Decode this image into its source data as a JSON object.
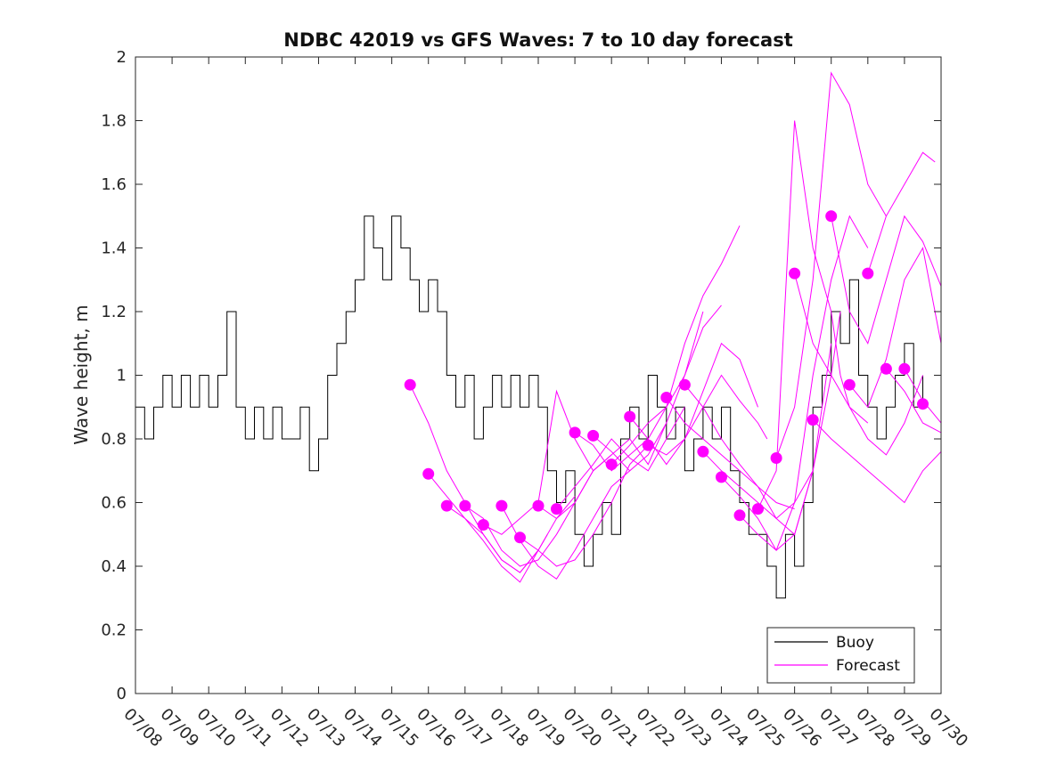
{
  "chart_data": {
    "type": "line",
    "title": "NDBC 42019 vs GFS Waves: 7 to 10 day forecast",
    "xlabel": "",
    "ylabel": "Wave height, m",
    "ylim": [
      0,
      2
    ],
    "yticks": [
      "0",
      "0.2",
      "0.4",
      "0.6",
      "0.8",
      "1",
      "1.2",
      "1.4",
      "1.6",
      "1.8",
      "2"
    ],
    "xlim": [
      "07/08",
      "07/30"
    ],
    "xticks": [
      "07/08",
      "07/09",
      "07/10",
      "07/11",
      "07/12",
      "07/13",
      "07/14",
      "07/15",
      "07/16",
      "07/17",
      "07/18",
      "07/19",
      "07/20",
      "07/21",
      "07/22",
      "07/23",
      "07/24",
      "07/25",
      "07/26",
      "07/27",
      "07/28",
      "07/29",
      "07/30"
    ],
    "grid": false,
    "legend": {
      "location": "bottom-right",
      "entries": [
        "Buoy",
        "Forecast"
      ]
    },
    "colors": {
      "buoy": "#000000",
      "forecast": "#ff00ff"
    },
    "buoy": {
      "name": "Buoy",
      "x": [
        "07/08 00:00",
        "07/08 06:00",
        "07/08 12:00",
        "07/08 18:00",
        "07/09 00:00",
        "07/09 06:00",
        "07/09 12:00",
        "07/09 18:00",
        "07/10 00:00",
        "07/10 06:00",
        "07/10 12:00",
        "07/10 18:00",
        "07/11 00:00",
        "07/11 06:00",
        "07/11 12:00",
        "07/11 18:00",
        "07/12 00:00",
        "07/12 06:00",
        "07/12 12:00",
        "07/12 18:00",
        "07/13 00:00",
        "07/13 06:00",
        "07/13 12:00",
        "07/13 18:00",
        "07/14 00:00",
        "07/14 06:00",
        "07/14 12:00",
        "07/14 18:00",
        "07/15 00:00",
        "07/15 06:00",
        "07/15 12:00",
        "07/15 18:00",
        "07/16 00:00",
        "07/16 06:00",
        "07/16 12:00",
        "07/16 18:00",
        "07/17 00:00",
        "07/17 06:00",
        "07/17 12:00",
        "07/17 18:00",
        "07/18 00:00",
        "07/18 06:00",
        "07/18 12:00",
        "07/18 18:00",
        "07/19 00:00",
        "07/19 06:00",
        "07/19 12:00",
        "07/19 18:00",
        "07/20 00:00",
        "07/20 06:00",
        "07/20 12:00",
        "07/20 18:00",
        "07/21 00:00",
        "07/21 06:00",
        "07/21 12:00",
        "07/21 18:00",
        "07/22 00:00",
        "07/22 06:00",
        "07/22 12:00",
        "07/22 18:00",
        "07/23 00:00",
        "07/23 06:00",
        "07/23 12:00",
        "07/23 18:00",
        "07/24 00:00",
        "07/24 06:00",
        "07/24 12:00",
        "07/24 18:00",
        "07/25 00:00",
        "07/25 06:00",
        "07/25 12:00",
        "07/25 18:00",
        "07/26 00:00",
        "07/26 06:00",
        "07/26 12:00",
        "07/26 18:00",
        "07/27 00:00",
        "07/27 06:00",
        "07/27 12:00",
        "07/27 18:00",
        "07/28 00:00",
        "07/28 06:00",
        "07/28 12:00",
        "07/28 18:00",
        "07/29 00:00",
        "07/29 06:00",
        "07/29 12:00"
      ],
      "y": [
        0.9,
        0.8,
        0.9,
        1.0,
        0.9,
        1.0,
        0.9,
        1.0,
        0.9,
        1.0,
        1.2,
        0.9,
        0.8,
        0.9,
        0.8,
        0.9,
        0.8,
        0.8,
        0.9,
        0.7,
        0.8,
        1.0,
        1.1,
        1.2,
        1.3,
        1.5,
        1.4,
        1.3,
        1.5,
        1.4,
        1.3,
        1.2,
        1.3,
        1.2,
        1.0,
        0.9,
        1.0,
        0.8,
        0.9,
        1.0,
        0.9,
        1.0,
        0.9,
        1.0,
        0.9,
        0.7,
        0.6,
        0.7,
        0.5,
        0.4,
        0.5,
        0.6,
        0.5,
        0.8,
        0.9,
        0.8,
        1.0,
        0.9,
        0.8,
        0.9,
        0.7,
        0.8,
        0.9,
        0.8,
        0.9,
        0.7,
        0.6,
        0.5,
        0.5,
        0.4,
        0.3,
        0.5,
        0.4,
        0.6,
        0.9,
        1.0,
        1.2,
        1.1,
        1.3,
        1.0,
        0.9,
        0.8,
        0.9,
        1.0,
        1.1,
        0.9,
        1.0
      ]
    },
    "forecast_series": [
      {
        "x": [
          "07/15 12:00",
          "07/16 00:00",
          "07/16 12:00",
          "07/17 00:00",
          "07/17 12:00",
          "07/18 00:00",
          "07/18 12:00",
          "07/19 00:00"
        ],
        "y": [
          0.97,
          0.85,
          0.7,
          0.6,
          0.5,
          0.42,
          0.38,
          0.45
        ]
      },
      {
        "x": [
          "07/16 00:00",
          "07/16 12:00",
          "07/17 00:00",
          "07/17 12:00",
          "07/18 00:00",
          "07/18 12:00",
          "07/19 00:00",
          "07/19 06:00"
        ],
        "y": [
          0.69,
          0.62,
          0.55,
          0.48,
          0.4,
          0.35,
          0.45,
          0.5
        ]
      },
      {
        "x": [
          "07/16 12:00",
          "07/17 00:00",
          "07/17 12:00",
          "07/18 00:00",
          "07/18 12:00",
          "07/19 00:00",
          "07/19 12:00",
          "07/20 00:00"
        ],
        "y": [
          0.59,
          0.55,
          0.5,
          0.42,
          0.38,
          0.45,
          0.55,
          0.62
        ]
      },
      {
        "x": [
          "07/17 00:00",
          "07/17 12:00",
          "07/18 00:00",
          "07/18 12:00",
          "07/19 00:00",
          "07/19 12:00",
          "07/20 00:00",
          "07/20 12:00"
        ],
        "y": [
          0.59,
          0.55,
          0.45,
          0.4,
          0.42,
          0.5,
          0.6,
          0.7
        ]
      },
      {
        "x": [
          "07/17 12:00",
          "07/18 00:00",
          "07/18 12:00",
          "07/19 00:00",
          "07/19 12:00",
          "07/20 00:00",
          "07/20 12:00",
          "07/21 00:00"
        ],
        "y": [
          0.53,
          0.5,
          0.55,
          0.6,
          0.95,
          0.8,
          0.7,
          0.75
        ]
      },
      {
        "x": [
          "07/18 00:00",
          "07/18 12:00",
          "07/19 00:00",
          "07/19 12:00",
          "07/20 00:00",
          "07/20 12:00",
          "07/21 00:00",
          "07/21 12:00"
        ],
        "y": [
          0.59,
          0.48,
          0.4,
          0.36,
          0.45,
          0.55,
          0.65,
          0.7
        ]
      },
      {
        "x": [
          "07/18 12:00",
          "07/19 00:00",
          "07/19 12:00",
          "07/20 00:00",
          "07/20 12:00",
          "07/21 00:00",
          "07/21 12:00",
          "07/22 00:00"
        ],
        "y": [
          0.49,
          0.45,
          0.4,
          0.42,
          0.5,
          0.6,
          0.72,
          0.78
        ]
      },
      {
        "x": [
          "07/19 00:00",
          "07/19 12:00",
          "07/20 00:00",
          "07/20 12:00",
          "07/21 00:00",
          "07/21 12:00",
          "07/22 00:00",
          "07/22 12:00"
        ],
        "y": [
          0.59,
          0.55,
          0.6,
          0.7,
          0.75,
          0.8,
          0.72,
          0.85
        ]
      },
      {
        "x": [
          "07/19 12:00",
          "07/20 00:00",
          "07/20 12:00",
          "07/21 00:00",
          "07/21 12:00",
          "07/22 00:00",
          "07/22 12:00",
          "07/23 00:00"
        ],
        "y": [
          0.58,
          0.65,
          0.72,
          0.8,
          0.74,
          0.7,
          0.8,
          0.9
        ]
      },
      {
        "x": [
          "07/20 00:00",
          "07/20 12:00",
          "07/21 00:00",
          "07/21 12:00",
          "07/22 00:00",
          "07/22 12:00",
          "07/23 00:00",
          "07/23 12:00"
        ],
        "y": [
          0.82,
          0.78,
          0.7,
          0.75,
          0.8,
          0.9,
          1.0,
          1.2
        ]
      },
      {
        "x": [
          "07/20 12:00",
          "07/21 00:00",
          "07/21 12:00",
          "07/22 00:00",
          "07/22 12:00",
          "07/23 00:00",
          "07/23 12:00",
          "07/24 00:00"
        ],
        "y": [
          0.81,
          0.76,
          0.7,
          0.75,
          0.85,
          1.0,
          1.15,
          1.22
        ]
      },
      {
        "x": [
          "07/21 00:00",
          "07/21 12:00",
          "07/22 00:00",
          "07/22 12:00",
          "07/23 00:00",
          "07/23 12:00",
          "07/24 00:00",
          "07/24 12:00"
        ],
        "y": [
          0.72,
          0.78,
          0.85,
          0.9,
          1.1,
          1.25,
          1.35,
          1.47
        ]
      },
      {
        "x": [
          "07/21 12:00",
          "07/22 00:00",
          "07/22 12:00",
          "07/23 00:00",
          "07/23 12:00",
          "07/24 00:00",
          "07/24 12:00",
          "07/25 00:00"
        ],
        "y": [
          0.87,
          0.8,
          0.72,
          0.8,
          0.95,
          1.1,
          1.05,
          0.9
        ]
      },
      {
        "x": [
          "07/22 00:00",
          "07/22 12:00",
          "07/23 00:00",
          "07/23 12:00",
          "07/24 00:00",
          "07/24 12:00",
          "07/25 00:00",
          "07/25 06:00"
        ],
        "y": [
          0.78,
          0.75,
          0.8,
          0.9,
          1.0,
          0.92,
          0.85,
          0.8
        ]
      },
      {
        "x": [
          "07/22 12:00",
          "07/23 00:00",
          "07/23 12:00",
          "07/24 00:00",
          "07/24 12:00",
          "07/25 00:00",
          "07/25 12:00",
          "07/26 00:00"
        ],
        "y": [
          0.93,
          0.85,
          0.8,
          0.75,
          0.7,
          0.65,
          0.6,
          0.58
        ]
      },
      {
        "x": [
          "07/23 00:00",
          "07/23 12:00",
          "07/24 00:00",
          "07/24 12:00",
          "07/25 00:00",
          "07/25 12:00",
          "07/26 00:00",
          "07/26 12:00"
        ],
        "y": [
          0.97,
          0.9,
          0.8,
          0.72,
          0.65,
          0.55,
          0.6,
          0.7
        ]
      },
      {
        "x": [
          "07/23 12:00",
          "07/24 00:00",
          "07/24 12:00",
          "07/25 00:00",
          "07/25 12:00",
          "07/26 00:00",
          "07/26 12:00",
          "07/27 00:00"
        ],
        "y": [
          0.76,
          0.7,
          0.65,
          0.6,
          0.55,
          0.5,
          0.7,
          1.1
        ]
      },
      {
        "x": [
          "07/24 00:00",
          "07/24 12:00",
          "07/25 00:00",
          "07/25 12:00",
          "07/26 00:00",
          "07/26 12:00",
          "07/27 00:00",
          "07/27 06:00"
        ],
        "y": [
          0.68,
          0.62,
          0.55,
          0.45,
          0.5,
          0.7,
          1.0,
          1.2
        ]
      },
      {
        "x": [
          "07/24 12:00",
          "07/25 00:00",
          "07/25 12:00",
          "07/26 00:00",
          "07/26 12:00",
          "07/27 00:00",
          "07/27 12:00",
          "07/28 00:00"
        ],
        "y": [
          0.56,
          0.5,
          0.45,
          0.6,
          1.0,
          1.3,
          1.5,
          1.4
        ]
      },
      {
        "x": [
          "07/25 00:00",
          "07/25 12:00",
          "07/26 00:00",
          "07/26 12:00",
          "07/27 00:00",
          "07/27 06:00",
          "07/27 12:00",
          "07/28 00:00"
        ],
        "y": [
          0.58,
          0.7,
          1.8,
          1.4,
          1.2,
          1.0,
          0.9,
          0.85
        ]
      },
      {
        "x": [
          "07/25 12:00",
          "07/26 00:00",
          "07/26 12:00",
          "07/27 00:00",
          "07/27 06:00",
          "07/27 12:00",
          "07/28 00:00",
          "07/28 12:00"
        ],
        "y": [
          0.74,
          0.9,
          1.3,
          1.95,
          1.9,
          1.85,
          1.6,
          1.5
        ]
      },
      {
        "x": [
          "07/26 00:00",
          "07/26 12:00",
          "07/27 00:00",
          "07/27 12:00",
          "07/28 00:00",
          "07/28 12:00",
          "07/29 00:00",
          "07/29 12:00"
        ],
        "y": [
          1.32,
          1.1,
          1.0,
          0.9,
          0.8,
          0.75,
          0.85,
          1.0
        ]
      },
      {
        "x": [
          "07/26 12:00",
          "07/27 00:00",
          "07/27 12:00",
          "07/28 00:00",
          "07/28 12:00",
          "07/29 00:00",
          "07/29 12:00",
          "07/30 00:00"
        ],
        "y": [
          0.86,
          0.8,
          0.75,
          0.7,
          0.65,
          0.6,
          0.7,
          0.76
        ]
      },
      {
        "x": [
          "07/27 00:00",
          "07/27 12:00",
          "07/28 00:00",
          "07/28 12:00",
          "07/29 00:00",
          "07/29 12:00",
          "07/30 00:00"
        ],
        "y": [
          1.5,
          1.2,
          1.1,
          1.3,
          1.5,
          1.42,
          1.28
        ]
      },
      {
        "x": [
          "07/27 12:00",
          "07/28 00:00",
          "07/28 12:00",
          "07/29 00:00",
          "07/29 12:00",
          "07/30 00:00"
        ],
        "y": [
          0.97,
          0.9,
          1.05,
          1.3,
          1.4,
          1.1
        ]
      },
      {
        "x": [
          "07/28 00:00",
          "07/28 12:00",
          "07/29 00:00",
          "07/29 12:00",
          "07/29 20:00"
        ],
        "y": [
          1.32,
          1.5,
          1.6,
          1.7,
          1.67
        ]
      },
      {
        "x": [
          "07/28 12:00",
          "07/29 00:00",
          "07/29 12:00",
          "07/30 00:00"
        ],
        "y": [
          1.02,
          0.95,
          0.85,
          0.82
        ]
      },
      {
        "x": [
          "07/29 00:00",
          "07/29 12:00",
          "07/30 00:00"
        ],
        "y": [
          1.02,
          0.92,
          0.85
        ]
      }
    ],
    "forecast_points": {
      "x": [
        "07/15 12:00",
        "07/16 00:00",
        "07/16 12:00",
        "07/17 00:00",
        "07/17 12:00",
        "07/18 00:00",
        "07/18 12:00",
        "07/19 00:00",
        "07/19 12:00",
        "07/20 00:00",
        "07/20 12:00",
        "07/21 00:00",
        "07/21 12:00",
        "07/22 00:00",
        "07/22 12:00",
        "07/23 00:00",
        "07/23 12:00",
        "07/24 00:00",
        "07/24 12:00",
        "07/25 00:00",
        "07/25 12:00",
        "07/26 00:00",
        "07/26 12:00",
        "07/27 00:00",
        "07/27 12:00",
        "07/28 00:00",
        "07/28 12:00",
        "07/29 00:00",
        "07/29 12:00"
      ],
      "y": [
        0.97,
        0.69,
        0.59,
        0.59,
        0.53,
        0.59,
        0.49,
        0.59,
        0.58,
        0.82,
        0.81,
        0.72,
        0.87,
        0.78,
        0.93,
        0.97,
        0.76,
        0.68,
        0.56,
        0.58,
        0.74,
        1.32,
        0.86,
        1.5,
        0.97,
        1.32,
        1.02,
        1.02,
        0.91
      ]
    }
  }
}
